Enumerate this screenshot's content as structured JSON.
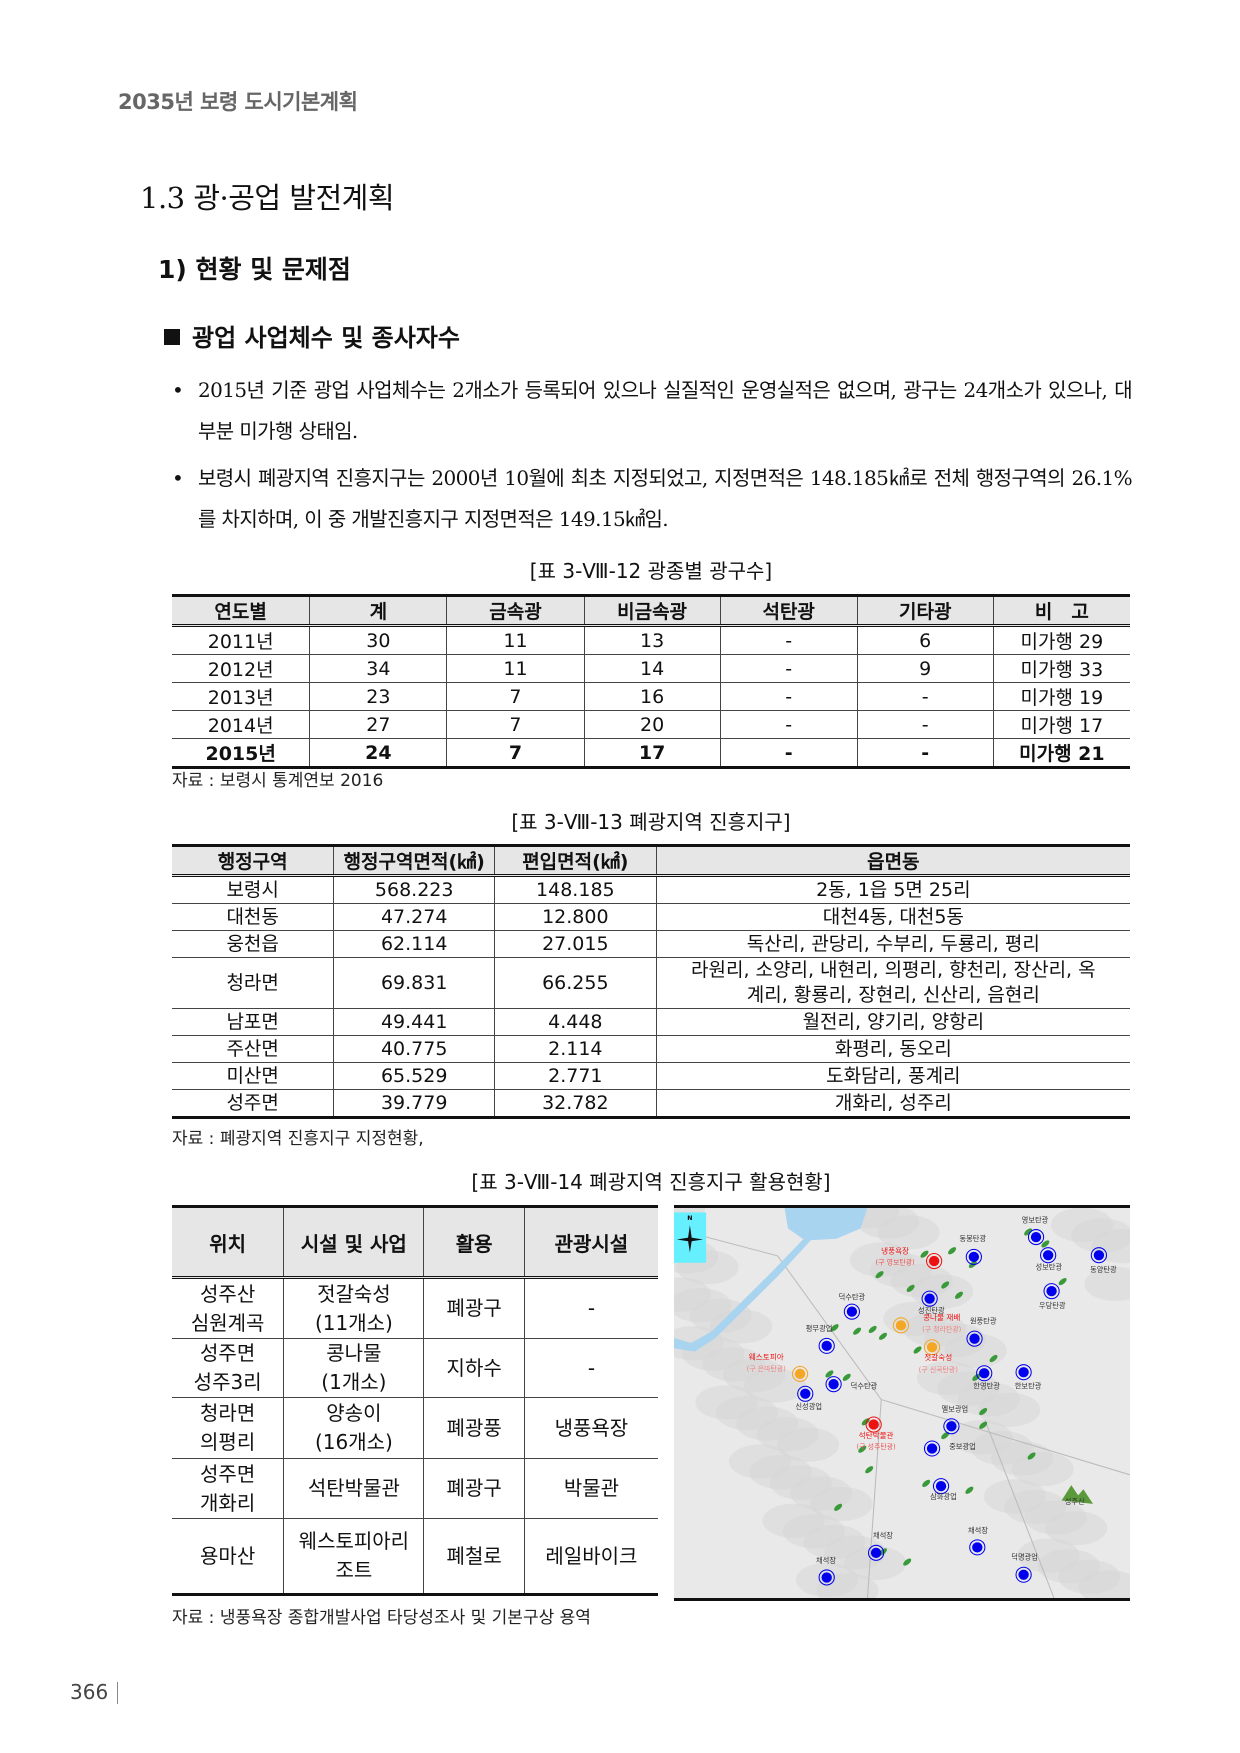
{
  "running_head": "2035년 보령 도시기본계획",
  "section_title": "1.3 광·공업 발전계획",
  "subsection_title": "1) 현황 및 문제점",
  "topic_title": "광업 사업체수 및 종사자수",
  "bullets": [
    "2015년 기준 광업 사업체수는 2개소가 등록되어 있으나 실질적인 운영실적은 없으며, 광구는 24개소가 있으나, 대부분 미가행 상태임.",
    "보령시 폐광지역 진흥지구는 2000년 10월에 최초 지정되었고, 지정면적은 148.185㎢로 전체 행정구역의 26.1%를 차지하며, 이 중 개발진흥지구 지정면적은 149.15㎢임."
  ],
  "bullet_marker": "•",
  "table1": {
    "caption": "[표 3-Ⅷ-12 광종별 광구수]",
    "headers": [
      "연도별",
      "계",
      "금속광",
      "비금속광",
      "석탄광",
      "기타광",
      "비　고"
    ],
    "rows": [
      [
        "2011년",
        "30",
        "11",
        "13",
        "-",
        "6",
        "미가행 29"
      ],
      [
        "2012년",
        "34",
        "11",
        "14",
        "-",
        "9",
        "미가행 33"
      ],
      [
        "2013년",
        "23",
        "7",
        "16",
        "-",
        "-",
        "미가행 19"
      ],
      [
        "2014년",
        "27",
        "7",
        "20",
        "-",
        "-",
        "미가행 17"
      ],
      [
        "2015년",
        "24",
        "7",
        "17",
        "-",
        "-",
        "미가행 21"
      ]
    ],
    "source": "자료 : 보령시 통계연보 2016"
  },
  "table2": {
    "caption": "[표 3-Ⅷ-13 폐광지역 진흥지구]",
    "headers": [
      "행정구역",
      "행정구역면적(㎢)",
      "편입면적(㎢)",
      "읍면동"
    ],
    "rows": [
      [
        "보령시",
        "568.223",
        "148.185",
        "2동, 1읍 5면 25리"
      ],
      [
        "대천동",
        "47.274",
        "12.800",
        "대천4동, 대천5동"
      ],
      [
        "웅천읍",
        "62.114",
        "27.015",
        "독산리, 관당리, 수부리, 두룡리, 평리"
      ],
      [
        "청라면",
        "69.831",
        "66.255",
        "라원리, 소양리, 내현리, 의평리, 향천리, 장산리, 옥계리, 황룡리, 장현리, 신산리, 음현리"
      ],
      [
        "남포면",
        "49.441",
        "4.448",
        "월전리, 양기리, 양항리"
      ],
      [
        "주산면",
        "40.775",
        "2.114",
        "화평리, 동오리"
      ],
      [
        "미산면",
        "65.529",
        "2.771",
        "도화담리, 풍계리"
      ],
      [
        "성주면",
        "39.779",
        "32.782",
        "개화리, 성주리"
      ]
    ],
    "source": "자료 : 폐광지역 진흥지구 지정현황,"
  },
  "table3": {
    "caption": "[표 3-Ⅷ-14 폐광지역 진흥지구 활용현황]",
    "headers": [
      "위치",
      "시설 및 사업",
      "활용",
      "관광시설"
    ],
    "rows": [
      [
        [
          "성주산",
          "심원계곡"
        ],
        [
          "젓갈숙성",
          "(11개소)"
        ],
        "폐광구",
        "-"
      ],
      [
        [
          "성주면",
          "성주3리"
        ],
        [
          "콩나물",
          "(1개소)"
        ],
        "지하수",
        "-"
      ],
      [
        [
          "청라면",
          "의평리"
        ],
        [
          "양송이",
          "(16개소)"
        ],
        "폐광풍",
        "냉풍욕장"
      ],
      [
        [
          "성주면",
          "개화리"
        ],
        [
          "석탄박물관"
        ],
        "폐광구",
        "박물관"
      ],
      [
        [
          "용마산"
        ],
        [
          "웨스토피아리",
          "조트"
        ],
        "폐철로",
        "레일바이크"
      ]
    ],
    "source": "자료 : 냉풍욕장 종합개발사업 타당성조사 및 기본구상 용역"
  },
  "map": {
    "north_label": "N",
    "icons": [
      "compass-rose-icon",
      "mountain-icon"
    ],
    "colors": {
      "mine": "#0000ee",
      "converted_red": "#ee1111",
      "converted_orange": "#f5a623",
      "land": "#e9e9e9",
      "water": "#a8d4f0",
      "forest": "#3a9a3a",
      "compass_bg": "#66f0ff"
    },
    "blue_labels": [
      "영보탄광",
      "동봉탄광",
      "성보탄광",
      "동양탄광",
      "우당탄광",
      "성진탄광",
      "덕수탄광",
      "원풍탄광",
      "평무광업",
      "한영탄광",
      "한보탄광",
      "덕수탄광",
      "신성광업",
      "멜보광업",
      "중보광업",
      "삼화광업",
      "채석장",
      "채석장",
      "채석장",
      "덕명광업"
    ],
    "red_labels": [
      [
        "냉풍욕장",
        "(구 영보탄광)"
      ],
      [
        "석탄박물관",
        "(구 성주탄광)"
      ]
    ],
    "orange_labels": [
      [
        "콩나물 재배",
        "(구 청라탄광)"
      ],
      [
        "젓갈숙성",
        "(구 신곡탄광)"
      ],
      [
        "웨스토피아",
        "(구 은마탄광)"
      ]
    ],
    "mountain_label": "성주산"
  },
  "page_number": "366"
}
